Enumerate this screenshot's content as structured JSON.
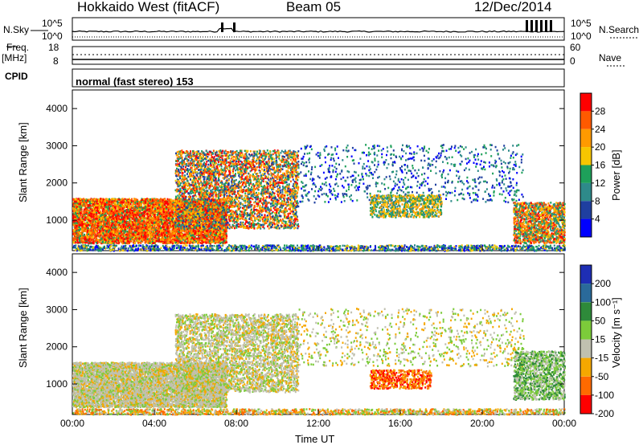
{
  "header": {
    "station": "Hokkaido West (fitACF)",
    "beam": "Beam 05",
    "date": "12/Dec/2014"
  },
  "noise_panel": {
    "left_label": "N.Sky",
    "right_label": "N.Search",
    "left_ticks": [
      "10^5",
      "10^0"
    ],
    "right_ticks": [
      "10^5",
      "10^0"
    ]
  },
  "freq_panel": {
    "left_label_1": "Freq.",
    "left_label_2": "[MHz]",
    "left_ticks": [
      "18",
      "8"
    ],
    "right_label": "Nave",
    "right_ticks": [
      "60",
      "0"
    ]
  },
  "cpid": {
    "label": "CPID",
    "value": "normal (fast stereo) 153"
  },
  "chart_data": [
    {
      "type": "heatmap",
      "name": "power",
      "ylabel": "Slant Range [km]",
      "yticks": [
        "4000",
        "3000",
        "2000",
        "1000"
      ],
      "ylim": [
        180,
        4500
      ],
      "xlim": [
        0,
        24
      ],
      "colorbar": {
        "label": "Power [dB]",
        "ticks": [
          "28",
          "24",
          "20",
          "16",
          "12",
          "8",
          "4"
        ],
        "colors": [
          "#ff0000",
          "#ff5a00",
          "#ff9a00",
          "#f7c600",
          "#1ea05a",
          "#2e8a8a",
          "#1f3fa0",
          "#0000ff"
        ]
      }
    },
    {
      "type": "heatmap",
      "name": "velocity",
      "ylabel": "Slant Range [km]",
      "yticks": [
        "4000",
        "3000",
        "2000",
        "1000"
      ],
      "ylim": [
        180,
        4500
      ],
      "xlim": [
        0,
        24
      ],
      "xlabel": "Time UT",
      "xticks": [
        "00:00",
        "04:00",
        "08:00",
        "12:00",
        "16:00",
        "20:00",
        "00:00"
      ],
      "colorbar": {
        "label": "Velocity [m s⁻¹]",
        "ticks": [
          "200",
          "100",
          "50",
          "15",
          "-15",
          "-50",
          "-100",
          "-200"
        ],
        "colors": [
          "#1e2eb4",
          "#2a6a9a",
          "#2e8a3a",
          "#7ccb3a",
          "#c0c0b0",
          "#f5a800",
          "#ff6a00",
          "#ff0000"
        ]
      }
    }
  ]
}
